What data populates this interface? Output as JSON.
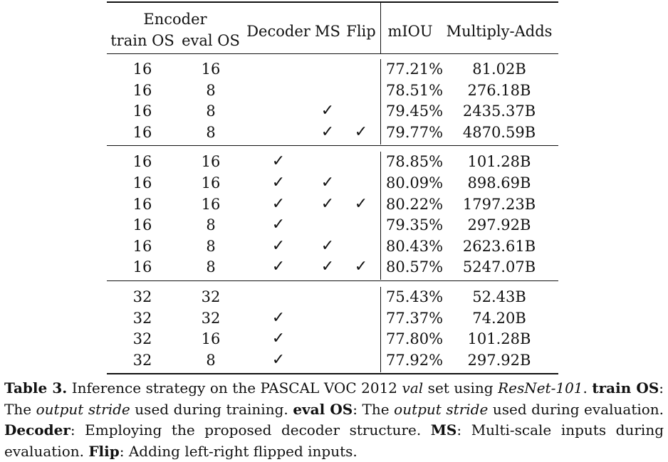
{
  "table": {
    "header": {
      "encoder": "Encoder",
      "train_os": "train OS",
      "eval_os": "eval OS",
      "decoder": "Decoder",
      "ms": "MS",
      "flip": "Flip",
      "miou": "mIOU",
      "madds": "Multiply-Adds"
    },
    "check_symbol": "✓",
    "groups": [
      [
        {
          "train": "16",
          "eval": "16",
          "decoder": false,
          "ms": false,
          "flip": false,
          "miou": "77.21%",
          "madds": "81.02B"
        },
        {
          "train": "16",
          "eval": "8",
          "decoder": false,
          "ms": false,
          "flip": false,
          "miou": "78.51%",
          "madds": "276.18B"
        },
        {
          "train": "16",
          "eval": "8",
          "decoder": false,
          "ms": true,
          "flip": false,
          "miou": "79.45%",
          "madds": "2435.37B"
        },
        {
          "train": "16",
          "eval": "8",
          "decoder": false,
          "ms": true,
          "flip": true,
          "miou": "79.77%",
          "madds": "4870.59B"
        }
      ],
      [
        {
          "train": "16",
          "eval": "16",
          "decoder": true,
          "ms": false,
          "flip": false,
          "miou": "78.85%",
          "madds": "101.28B"
        },
        {
          "train": "16",
          "eval": "16",
          "decoder": true,
          "ms": true,
          "flip": false,
          "miou": "80.09%",
          "madds": "898.69B"
        },
        {
          "train": "16",
          "eval": "16",
          "decoder": true,
          "ms": true,
          "flip": true,
          "miou": "80.22%",
          "madds": "1797.23B"
        },
        {
          "train": "16",
          "eval": "8",
          "decoder": true,
          "ms": false,
          "flip": false,
          "miou": "79.35%",
          "madds": "297.92B"
        },
        {
          "train": "16",
          "eval": "8",
          "decoder": true,
          "ms": true,
          "flip": false,
          "miou": "80.43%",
          "madds": "2623.61B"
        },
        {
          "train": "16",
          "eval": "8",
          "decoder": true,
          "ms": true,
          "flip": true,
          "miou": "80.57%",
          "madds": "5247.07B"
        }
      ],
      [
        {
          "train": "32",
          "eval": "32",
          "decoder": false,
          "ms": false,
          "flip": false,
          "miou": "75.43%",
          "madds": "52.43B"
        },
        {
          "train": "32",
          "eval": "32",
          "decoder": true,
          "ms": false,
          "flip": false,
          "miou": "77.37%",
          "madds": "74.20B"
        },
        {
          "train": "32",
          "eval": "16",
          "decoder": true,
          "ms": false,
          "flip": false,
          "miou": "77.80%",
          "madds": "101.28B"
        },
        {
          "train": "32",
          "eval": "8",
          "decoder": true,
          "ms": false,
          "flip": false,
          "miou": "77.92%",
          "madds": "297.92B"
        }
      ]
    ]
  },
  "caption": {
    "label": "Table 3.",
    "t1": " Inference strategy on the PASCAL VOC 2012 ",
    "t1_val": "val",
    "t1b": " set using ",
    "t1_net": "ResNet-101",
    "t1c": ".",
    "k_train": "train OS",
    "t2": ": The ",
    "t2_os": "output stride",
    "t2b": " used during training. ",
    "k_eval": "eval OS",
    "t3": ": The ",
    "t3_os": "output stride",
    "t3b": " used during evaluation. ",
    "k_decoder": "Decoder",
    "t4": ": Employing the proposed decoder structure. ",
    "k_ms": "MS",
    "t5": ": Multi-scale inputs during evaluation. ",
    "k_flip": "Flip",
    "t6": ": Adding left-right flipped inputs."
  }
}
